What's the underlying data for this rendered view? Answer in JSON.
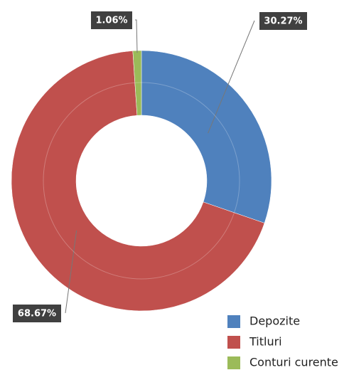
{
  "chart_data": {
    "type": "donut",
    "categories": [
      "Depozite",
      "Titluri",
      "Conturi curente"
    ],
    "values": [
      30.27,
      68.67,
      1.06
    ],
    "value_labels": [
      "30.27%",
      "68.67%",
      "1.06%"
    ],
    "colors": [
      "#4f81bd",
      "#c0504d",
      "#9bbb59"
    ],
    "legend": "bottom-right"
  }
}
